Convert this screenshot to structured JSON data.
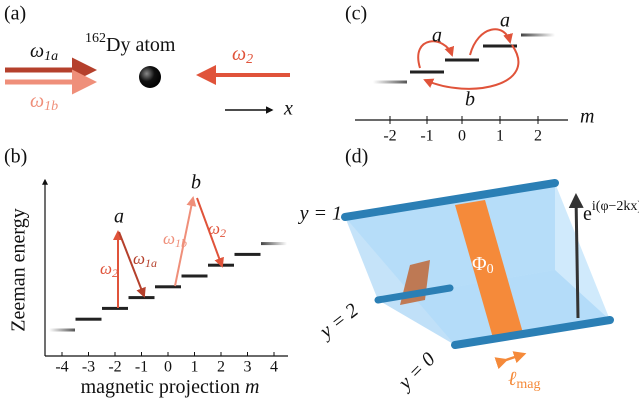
{
  "panels": {
    "a": {
      "label": "(a)",
      "isotope": "162",
      "atom": "Dy atom",
      "beams": [
        {
          "symbol": "ω",
          "sub": "1a"
        },
        {
          "symbol": "ω",
          "sub": "1b"
        },
        {
          "symbol": "ω",
          "sub": "2"
        }
      ],
      "axis": "x"
    },
    "b": {
      "label": "(b)",
      "y_label": "Zeeman energy",
      "x_label": {
        "text": "magnetic projection ",
        "var": "m"
      },
      "ticks": [
        "-4",
        "-3",
        "-2",
        "-1",
        "0",
        "1",
        "2",
        "3",
        "4"
      ],
      "states": [
        "a",
        "b"
      ],
      "transitions": [
        {
          "symbol": "ω",
          "sub": "2"
        },
        {
          "symbol": "ω",
          "sub": "1a"
        },
        {
          "symbol": "ω",
          "sub": "1b"
        },
        {
          "symbol": "ω",
          "sub": "2"
        }
      ]
    },
    "c": {
      "label": "(c)",
      "hops": [
        "a",
        "a"
      ],
      "long_hop": "b",
      "axis": "m",
      "ticks": [
        "-2",
        "-1",
        "0",
        "1",
        "2"
      ]
    },
    "d": {
      "label": "(d)",
      "legs": [
        "y = 1",
        "y = 2",
        "y = 0"
      ],
      "phase": {
        "base": "e",
        "exponent": "i(φ−2kx)"
      },
      "flux": {
        "symbol": "Φ",
        "sub": "0"
      },
      "length": {
        "symbol": "ℓ",
        "sub": "mag"
      }
    }
  }
}
